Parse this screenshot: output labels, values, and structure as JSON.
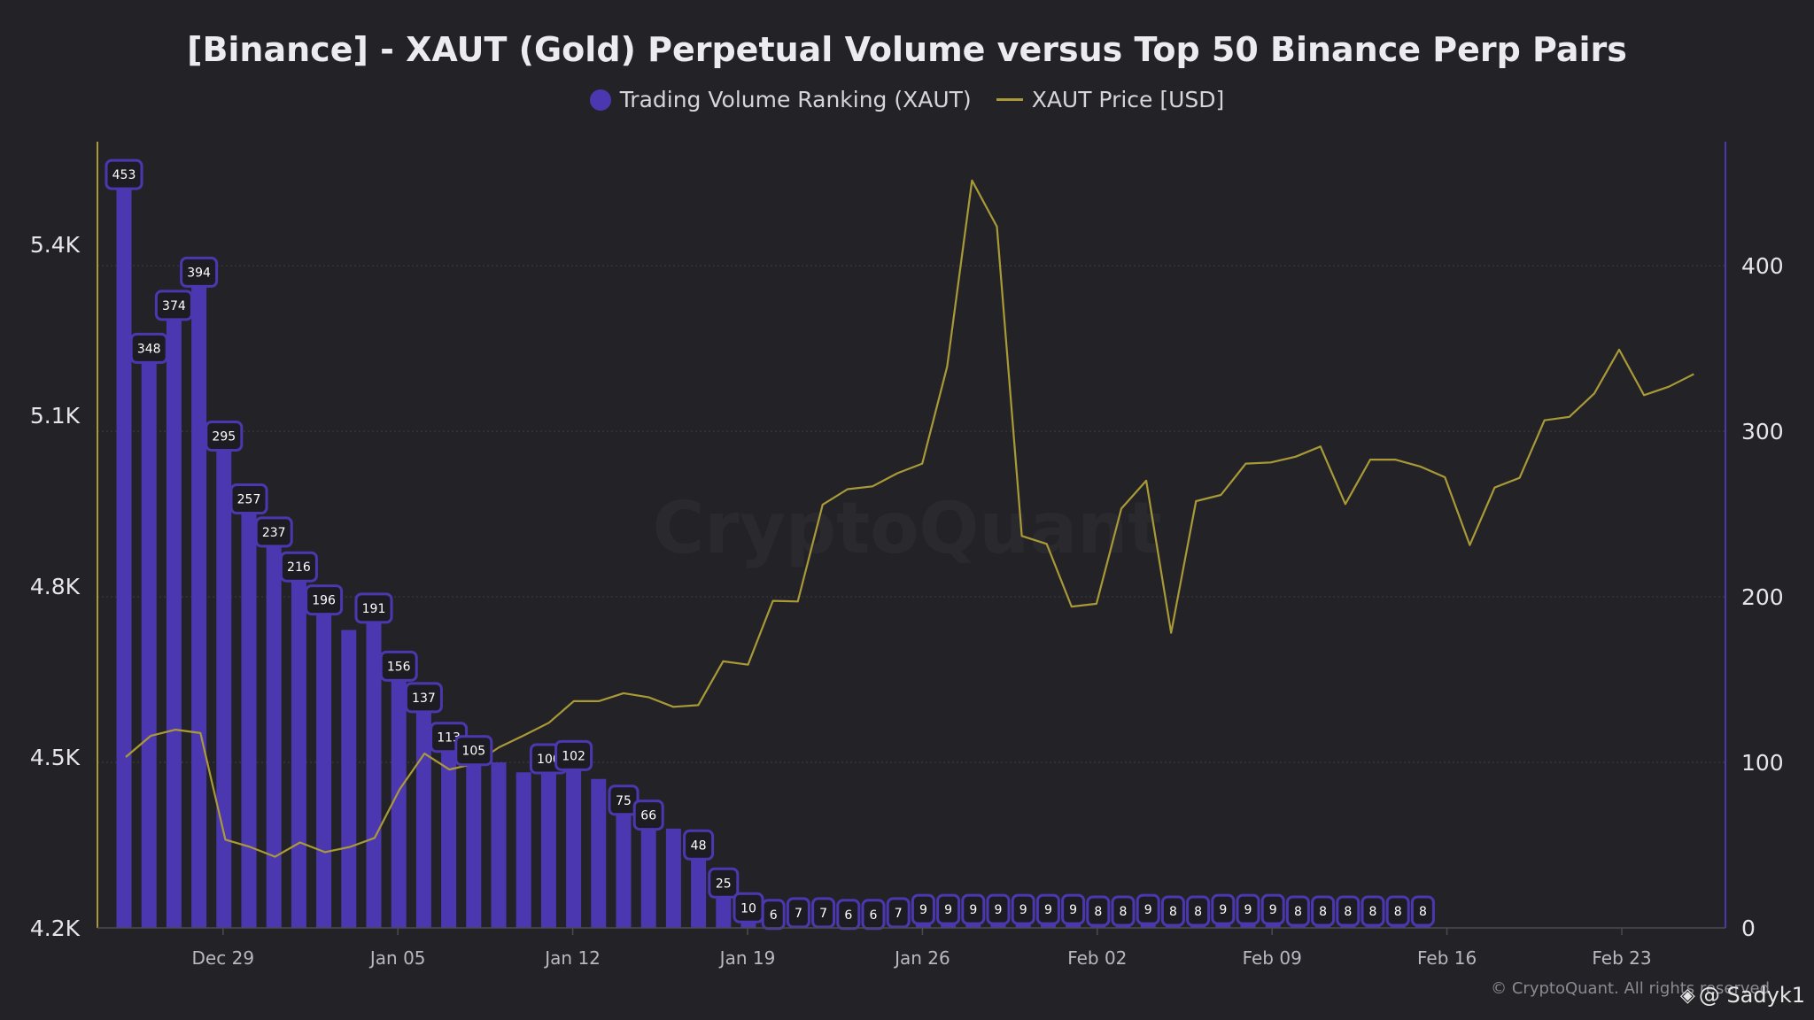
{
  "chart_data": {
    "type": "bar",
    "title": "[Binance] - XAUT (Gold) Perpetual Volume versus Top 50 Binance Perp Pairs",
    "legend": [
      "Trading Volume Ranking (XAUT)",
      "XAUT Price [USD]"
    ],
    "x_tick_labels": [
      "Dec 29",
      "Jan 05",
      "Jan 12",
      "Jan 19",
      "Jan 26",
      "Feb 02",
      "Feb 09",
      "Feb 16",
      "Feb 23"
    ],
    "left_axis": {
      "ticks": [
        "4.2K",
        "4.5K",
        "4.8K",
        "5.1K",
        "5.4K"
      ],
      "range": [
        4200,
        5580
      ]
    },
    "right_axis": {
      "ticks": [
        "0",
        "100",
        "200",
        "300",
        "400"
      ],
      "range": [
        0,
        475
      ]
    },
    "series": [
      {
        "name": "Trading Volume Ranking (XAUT)",
        "axis": "right",
        "color": "#4b38b0",
        "values": [
          453,
          348,
          374,
          394,
          295,
          257,
          237,
          216,
          196,
          180,
          191,
          156,
          137,
          113,
          105,
          100,
          94,
          100,
          102,
          90,
          75,
          66,
          60,
          48,
          25,
          10,
          6,
          7,
          7,
          6,
          6,
          7,
          9,
          9,
          9,
          9,
          9,
          9,
          9,
          8,
          8,
          9,
          8,
          8,
          9,
          9,
          9,
          8,
          8,
          8,
          8,
          8,
          8
        ],
        "labels": [
          "453",
          "348",
          "374",
          "394",
          "295",
          "257",
          "237",
          "216",
          "196",
          "",
          "191",
          "156",
          "137",
          "113",
          "105",
          "",
          "",
          "100",
          "102",
          "",
          "75",
          "66",
          "",
          "48",
          "25",
          "10",
          "6",
          "7",
          "7",
          "6",
          "6",
          "7",
          "9",
          "9",
          "9",
          "9",
          "9",
          "9",
          "9",
          "8",
          "8",
          "9",
          "8",
          "8",
          "9",
          "9",
          "9",
          "8",
          "8",
          "8",
          "8",
          "8",
          "8"
        ]
      },
      {
        "name": "XAUT Price [USD]",
        "axis": "left",
        "color": "#a99a37",
        "values": [
          4500,
          4537,
          4548,
          4542,
          4355,
          4342,
          4325,
          4350,
          4333,
          4342,
          4358,
          4443,
          4506,
          4478,
          4488,
          4517,
          4538,
          4560,
          4598,
          4598,
          4612,
          4605,
          4588,
          4591,
          4668,
          4662,
          4774,
          4773,
          4943,
          4970,
          4975,
          4998,
          5015,
          5185,
          5512,
          5431,
          4888,
          4874,
          4764,
          4769,
          4936,
          4985,
          4718,
          4949,
          4960,
          5015,
          5017,
          5027,
          5045,
          4944,
          5022,
          5022,
          5010,
          4991,
          4872,
          4973,
          4990,
          5091,
          5097,
          5138,
          5215,
          5135,
          5150,
          5172
        ]
      }
    ],
    "bar_count": 53,
    "price_count": 64,
    "grid": true
  },
  "watermark": "CryptoQuant",
  "copyright": "© CryptoQuant. All rights reserved",
  "handle": "@ Sadyk1"
}
